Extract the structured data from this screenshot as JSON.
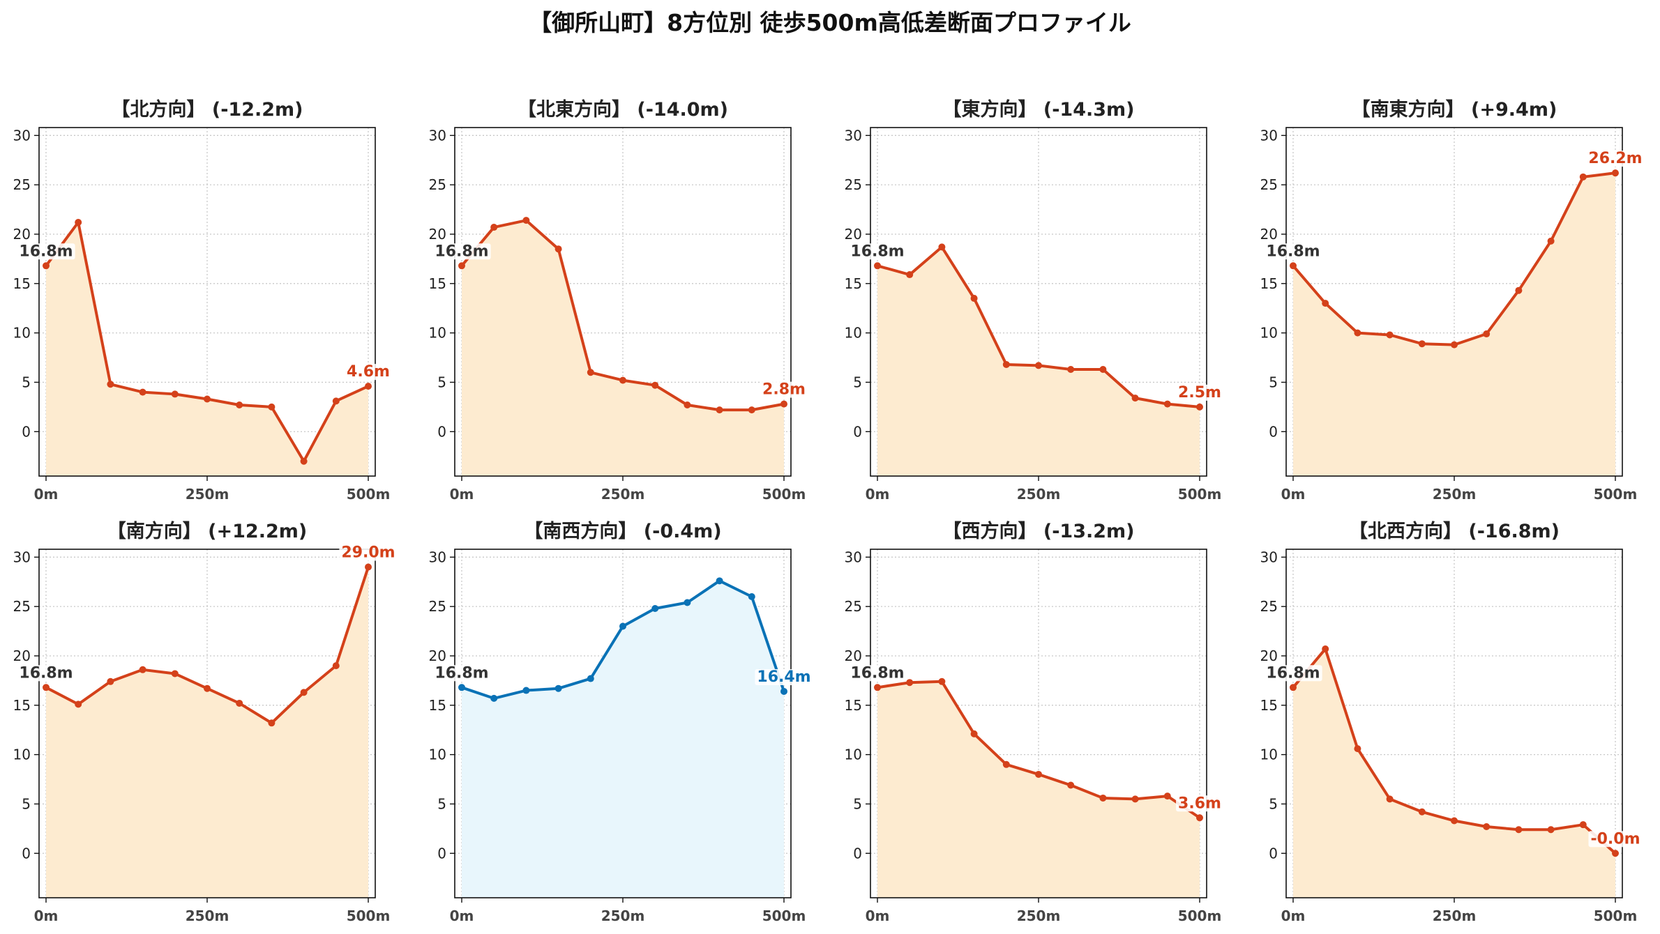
{
  "title": "【御所山町】8方位別 徒歩500m高低差断面プロファイル",
  "colors": {
    "down": "#d4411a",
    "up": "#0a72b6",
    "fill_down": "#fdebd0",
    "fill_up": "#e8f6fc",
    "start_label": "#333333"
  },
  "chart_data": [
    {
      "type": "area",
      "title": "【北方向】 (-12.2m)",
      "trend": "down",
      "x": [
        0,
        50,
        100,
        150,
        200,
        250,
        300,
        350,
        400,
        450,
        500
      ],
      "values": [
        16.8,
        21.2,
        4.8,
        4.0,
        3.8,
        3.3,
        2.7,
        2.5,
        -3.0,
        3.1,
        4.6
      ],
      "start_label": "16.8m",
      "end_label": "4.6m",
      "xticks": [
        "0m",
        "250m",
        "500m"
      ],
      "yticks": [
        "0",
        "5",
        "10",
        "15",
        "20",
        "25",
        "30"
      ],
      "ylim": [
        -4.5,
        30.8
      ],
      "grid": true
    },
    {
      "type": "area",
      "title": "【北東方向】 (-14.0m)",
      "trend": "down",
      "x": [
        0,
        50,
        100,
        150,
        200,
        250,
        300,
        350,
        400,
        450,
        500
      ],
      "values": [
        16.8,
        20.7,
        21.4,
        18.5,
        6.0,
        5.2,
        4.7,
        2.7,
        2.2,
        2.2,
        2.8
      ],
      "start_label": "16.8m",
      "end_label": "2.8m",
      "xticks": [
        "0m",
        "250m",
        "500m"
      ],
      "yticks": [
        "0",
        "5",
        "10",
        "15",
        "20",
        "25",
        "30"
      ],
      "ylim": [
        -4.5,
        30.8
      ],
      "grid": true
    },
    {
      "type": "area",
      "title": "【東方向】 (-14.3m)",
      "trend": "down",
      "x": [
        0,
        50,
        100,
        150,
        200,
        250,
        300,
        350,
        400,
        450,
        500
      ],
      "values": [
        16.8,
        15.9,
        18.7,
        13.5,
        6.8,
        6.7,
        6.3,
        6.3,
        3.4,
        2.8,
        2.5
      ],
      "start_label": "16.8m",
      "end_label": "2.5m",
      "xticks": [
        "0m",
        "250m",
        "500m"
      ],
      "yticks": [
        "0",
        "5",
        "10",
        "15",
        "20",
        "25",
        "30"
      ],
      "ylim": [
        -4.5,
        30.8
      ],
      "grid": true
    },
    {
      "type": "area",
      "title": "【南東方向】 (+9.4m)",
      "trend": "down",
      "x": [
        0,
        50,
        100,
        150,
        200,
        250,
        300,
        350,
        400,
        450,
        500
      ],
      "values": [
        16.8,
        13.0,
        10.0,
        9.8,
        8.9,
        8.8,
        9.9,
        14.3,
        19.3,
        25.8,
        26.2
      ],
      "start_label": "16.8m",
      "end_label": "26.2m",
      "xticks": [
        "0m",
        "250m",
        "500m"
      ],
      "yticks": [
        "0",
        "5",
        "10",
        "15",
        "20",
        "25",
        "30"
      ],
      "ylim": [
        -4.5,
        30.8
      ],
      "grid": true
    },
    {
      "type": "area",
      "title": "【南方向】 (+12.2m)",
      "trend": "down",
      "x": [
        0,
        50,
        100,
        150,
        200,
        250,
        300,
        350,
        400,
        450,
        500
      ],
      "values": [
        16.8,
        15.1,
        17.4,
        18.6,
        18.2,
        16.7,
        15.2,
        13.2,
        16.3,
        19.0,
        29.0
      ],
      "start_label": "16.8m",
      "end_label": "29.0m",
      "xticks": [
        "0m",
        "250m",
        "500m"
      ],
      "yticks": [
        "0",
        "5",
        "10",
        "15",
        "20",
        "25",
        "30"
      ],
      "ylim": [
        -4.5,
        30.8
      ],
      "grid": true
    },
    {
      "type": "area",
      "title": "【南西方向】 (-0.4m)",
      "trend": "up",
      "x": [
        0,
        50,
        100,
        150,
        200,
        250,
        300,
        350,
        400,
        450,
        500
      ],
      "values": [
        16.8,
        15.7,
        16.5,
        16.7,
        17.7,
        23.0,
        24.8,
        25.4,
        27.6,
        26.0,
        16.4
      ],
      "start_label": "16.8m",
      "end_label": "16.4m",
      "xticks": [
        "0m",
        "250m",
        "500m"
      ],
      "yticks": [
        "0",
        "5",
        "10",
        "15",
        "20",
        "25",
        "30"
      ],
      "ylim": [
        -4.5,
        30.8
      ],
      "grid": true
    },
    {
      "type": "area",
      "title": "【西方向】 (-13.2m)",
      "trend": "down",
      "x": [
        0,
        50,
        100,
        150,
        200,
        250,
        300,
        350,
        400,
        450,
        500
      ],
      "values": [
        16.8,
        17.3,
        17.4,
        12.1,
        9.0,
        8.0,
        6.9,
        5.6,
        5.5,
        5.8,
        3.6
      ],
      "start_label": "16.8m",
      "end_label": "3.6m",
      "xticks": [
        "0m",
        "250m",
        "500m"
      ],
      "yticks": [
        "0",
        "5",
        "10",
        "15",
        "20",
        "25",
        "30"
      ],
      "ylim": [
        -4.5,
        30.8
      ],
      "grid": true
    },
    {
      "type": "area",
      "title": "【北西方向】 (-16.8m)",
      "trend": "down",
      "x": [
        0,
        50,
        100,
        150,
        200,
        250,
        300,
        350,
        400,
        450,
        500
      ],
      "values": [
        16.8,
        20.7,
        10.6,
        5.5,
        4.2,
        3.3,
        2.7,
        2.4,
        2.4,
        2.9,
        0.0
      ],
      "start_label": "16.8m",
      "end_label": "-0.0m",
      "xticks": [
        "0m",
        "250m",
        "500m"
      ],
      "yticks": [
        "0",
        "5",
        "10",
        "15",
        "20",
        "25",
        "30"
      ],
      "ylim": [
        -4.5,
        30.8
      ],
      "grid": true
    }
  ]
}
